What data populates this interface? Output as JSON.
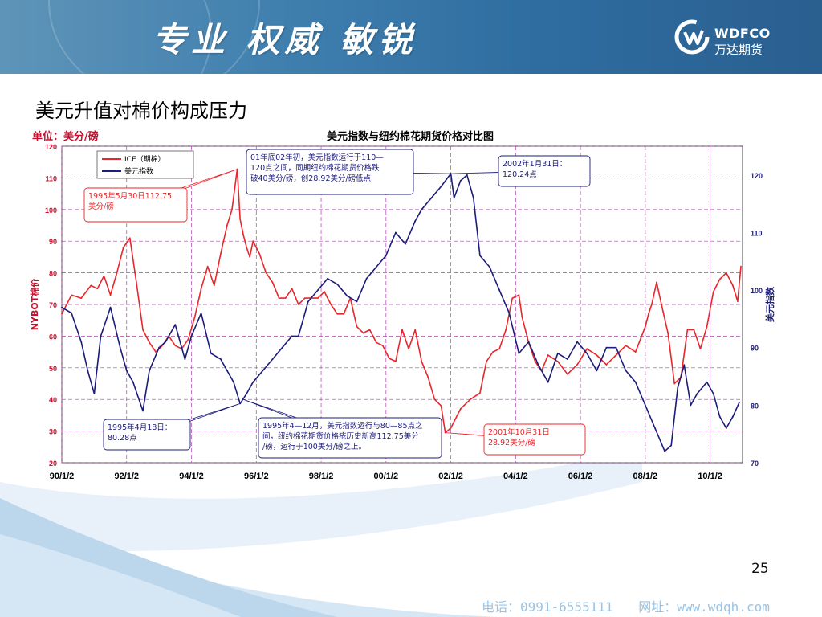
{
  "header": {
    "slogan": "专业 权威 敏锐",
    "logo_en": "WDFCO",
    "logo_cn": "万达期货"
  },
  "page": {
    "title": "美元升值对棉价构成压力",
    "number": "25"
  },
  "footer": {
    "phone": "电话：0991-6555111",
    "website": "网址：www.wdqh.com"
  },
  "chart_data": {
    "type": "line",
    "title": "美元指数与纽约棉花期货价格对比图",
    "unit_label": "单位：美分/磅",
    "ylabel_left": "NYBOT棉价",
    "ylabel_right": "美元指数",
    "ylim_left": [
      20,
      120
    ],
    "ylim_right": [
      70,
      125
    ],
    "left_ticks": [
      20,
      30,
      40,
      50,
      60,
      70,
      80,
      90,
      100,
      110,
      120
    ],
    "right_ticks": [
      70,
      80,
      90,
      100,
      110,
      120
    ],
    "xlim": [
      1990.0,
      2011.0
    ],
    "x_ticks": [
      {
        "x": 1990.0,
        "label": "90/1/2"
      },
      {
        "x": 1992.0,
        "label": "92/1/2"
      },
      {
        "x": 1994.0,
        "label": "94/1/2"
      },
      {
        "x": 1996.0,
        "label": "96/1/2"
      },
      {
        "x": 1998.0,
        "label": "98/1/2"
      },
      {
        "x": 2000.0,
        "label": "00/1/2"
      },
      {
        "x": 2002.0,
        "label": "02/1/2"
      },
      {
        "x": 2004.0,
        "label": "04/1/2"
      },
      {
        "x": 2006.0,
        "label": "06/1/2"
      },
      {
        "x": 2008.0,
        "label": "08/1/2"
      },
      {
        "x": 2010.0,
        "label": "10/1/2"
      }
    ],
    "grid": true,
    "legend_position": "top-left",
    "colors": {
      "cotton": "#e8262b",
      "usd": "#1c1c7a",
      "grid": "#b040b0"
    },
    "series": [
      {
        "name": "ICE（期棉）",
        "axis": "left",
        "x": [
          1990.0,
          1990.3,
          1990.6,
          1990.9,
          1991.1,
          1991.3,
          1991.5,
          1991.7,
          1991.9,
          1992.1,
          1992.3,
          1992.5,
          1992.7,
          1992.9,
          1993.1,
          1993.3,
          1993.5,
          1993.7,
          1993.9,
          1994.1,
          1994.3,
          1994.5,
          1994.7,
          1994.9,
          1995.1,
          1995.25,
          1995.41,
          1995.5,
          1995.6,
          1995.7,
          1995.8,
          1995.9,
          1996.1,
          1996.3,
          1996.5,
          1996.7,
          1996.9,
          1997.1,
          1997.3,
          1997.5,
          1997.7,
          1997.9,
          1998.1,
          1998.3,
          1998.5,
          1998.7,
          1998.9,
          1999.1,
          1999.3,
          1999.5,
          1999.7,
          1999.9,
          2000.1,
          2000.3,
          2000.5,
          2000.7,
          2000.9,
          2001.1,
          2001.3,
          2001.5,
          2001.7,
          2001.83,
          2002.0,
          2002.3,
          2002.6,
          2002.9,
          2003.1,
          2003.3,
          2003.5,
          2003.7,
          2003.9,
          2004.1,
          2004.2,
          2004.4,
          2004.6,
          2004.8,
          2005.0,
          2005.3,
          2005.6,
          2005.9,
          2006.2,
          2006.5,
          2006.8,
          2007.1,
          2007.4,
          2007.7,
          2008.0,
          2008.1,
          2008.2,
          2008.35,
          2008.5,
          2008.7,
          2008.9,
          2009.1,
          2009.3,
          2009.5,
          2009.7,
          2009.9,
          2010.1,
          2010.3,
          2010.5,
          2010.7,
          2010.85,
          2010.95
        ],
        "values": [
          67,
          73,
          72,
          76,
          75,
          79,
          73,
          80,
          88,
          91,
          77,
          62,
          58,
          55,
          57,
          60,
          57,
          56,
          59,
          66,
          75,
          82,
          76,
          86,
          95,
          100,
          112.75,
          97,
          92,
          88,
          85,
          90,
          86,
          80,
          77,
          72,
          72,
          75,
          70,
          72,
          72,
          72,
          74,
          70,
          67,
          67,
          72,
          63,
          61,
          62,
          58,
          57,
          53,
          52,
          62,
          56,
          62,
          52,
          47,
          40,
          38,
          29.5,
          31,
          37,
          40,
          42,
          52,
          55,
          56,
          62,
          72,
          73,
          66,
          58,
          52,
          49,
          54,
          52,
          48,
          51,
          56,
          54,
          51,
          54,
          57,
          55,
          63,
          67,
          70,
          77,
          70,
          61,
          45,
          47,
          62,
          62,
          56,
          63,
          74,
          78,
          80,
          76,
          71,
          82
        ]
      },
      {
        "name": "美元指数",
        "axis": "right",
        "x": [
          1990.0,
          1990.3,
          1990.6,
          1990.8,
          1991.0,
          1991.2,
          1991.5,
          1991.8,
          1992.0,
          1992.2,
          1992.5,
          1992.7,
          1993.0,
          1993.2,
          1993.5,
          1993.8,
          1994.0,
          1994.3,
          1994.6,
          1994.9,
          1995.1,
          1995.3,
          1995.5,
          1995.7,
          1995.9,
          1996.2,
          1996.5,
          1996.8,
          1997.1,
          1997.3,
          1997.6,
          1997.9,
          1998.2,
          1998.5,
          1998.8,
          1999.1,
          1999.4,
          1999.7,
          2000.0,
          2000.3,
          2000.6,
          2000.9,
          2001.1,
          2001.4,
          2001.7,
          2002.0,
          2002.1,
          2002.3,
          2002.5,
          2002.7,
          2002.9,
          2003.2,
          2003.5,
          2003.8,
          2004.1,
          2004.4,
          2004.7,
          2005.0,
          2005.3,
          2005.6,
          2005.9,
          2006.2,
          2006.5,
          2006.8,
          2007.1,
          2007.4,
          2007.7,
          2008.0,
          2008.3,
          2008.6,
          2008.8,
          2009.0,
          2009.2,
          2009.4,
          2009.6,
          2009.9,
          2010.1,
          2010.3,
          2010.5,
          2010.7,
          2010.9
        ],
        "values": [
          97,
          96,
          91,
          86,
          82,
          92,
          97,
          90,
          86,
          84,
          79,
          86,
          90,
          91,
          94,
          88,
          92,
          96,
          89,
          88,
          86,
          84,
          80.28,
          82,
          84,
          86,
          88,
          90,
          92,
          92,
          98,
          100,
          102,
          101,
          99,
          98,
          102,
          104,
          106,
          110,
          108,
          112,
          114,
          116,
          118,
          120.24,
          116,
          119,
          120,
          116,
          106,
          104,
          100,
          96,
          89,
          91,
          87,
          84,
          89,
          88,
          91,
          89,
          86,
          90,
          90,
          86,
          84,
          80,
          76,
          72,
          73,
          83,
          87,
          80,
          82,
          84,
          82,
          78,
          76,
          78,
          80.5
        ]
      }
    ],
    "annotations": [
      {
        "text": "1995年5月30日112.75美分/磅",
        "color": "red"
      },
      {
        "text": "01年底02年初，美元指数运行于110—120点之间，同期纽约棉花期货价格跌破40美分/磅，创28.92美分/磅低点",
        "color": "navy"
      },
      {
        "text": "2002年1月31日：120.24点",
        "color": "navy"
      },
      {
        "text": "1995年4月18日：80.28点",
        "color": "navy"
      },
      {
        "text": "1995年4—12月，美元指数运行与80—85点之间，纽约棉花期货价格疮历史新高112.75美分/磅，运行于100美分/磅之上。",
        "color": "navy"
      },
      {
        "text": "2001年10月31日28.92美分/磅",
        "color": "red"
      }
    ]
  }
}
